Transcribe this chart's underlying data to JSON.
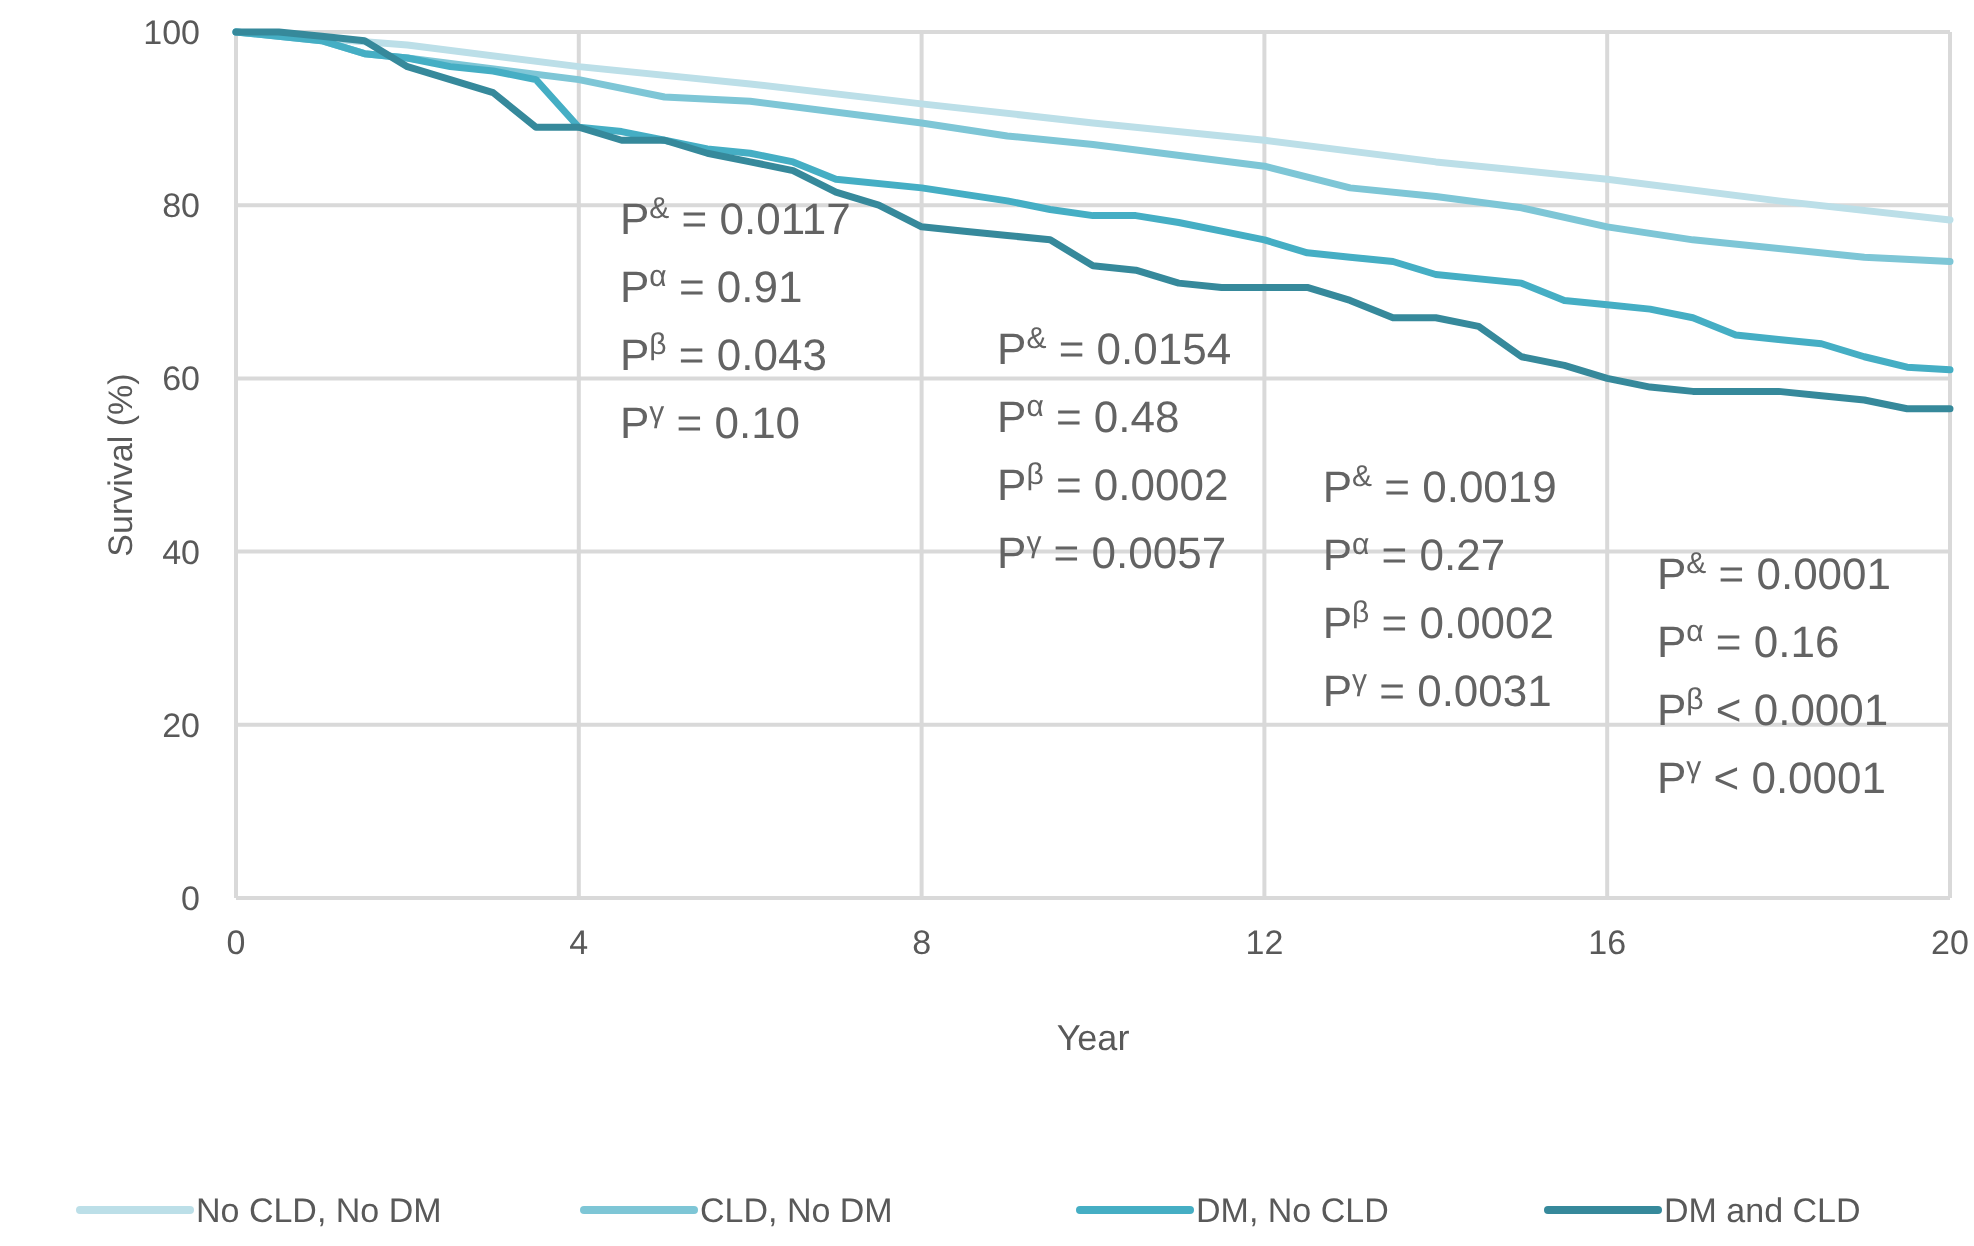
{
  "chart_data": {
    "type": "line",
    "xlabel": "Year",
    "ylabel": "Survival (%)",
    "xlim": [
      0,
      20
    ],
    "ylim": [
      0,
      100
    ],
    "xticks": [
      0,
      4,
      8,
      12,
      16,
      20
    ],
    "yticks": [
      0,
      20,
      40,
      60,
      80,
      100
    ],
    "grid": true,
    "legend": "bottom",
    "line_style": "solid",
    "series": [
      {
        "name": "No CLD, No DM",
        "color": "#bcdfe8",
        "x": [
          0,
          2,
          4,
          6,
          8,
          10,
          12,
          14,
          15,
          16,
          18,
          20
        ],
        "values": [
          100,
          98.5,
          96,
          94,
          91.7,
          89.5,
          87.5,
          85,
          84,
          83,
          80.5,
          78.3
        ]
      },
      {
        "name": "CLD, No DM",
        "color": "#7ec6d6",
        "x": [
          0,
          1,
          1.5,
          2,
          4,
          5,
          6,
          8,
          9,
          10,
          12,
          13,
          14,
          15,
          16,
          17,
          18,
          19,
          20
        ],
        "values": [
          100,
          99,
          97.5,
          97,
          94.5,
          92.5,
          92,
          89.5,
          88,
          87,
          84.5,
          82,
          81,
          79.7,
          77.5,
          76,
          75,
          74,
          73.5
        ]
      },
      {
        "name": "DM, No CLD",
        "color": "#45aec4",
        "x": [
          0,
          1,
          1.5,
          2,
          2.5,
          3,
          3.5,
          4,
          4.5,
          5,
          5.5,
          6,
          6.5,
          7,
          8,
          9,
          9.5,
          10,
          10.5,
          11,
          11.5,
          12,
          12.5,
          13,
          13.5,
          14,
          15,
          15.5,
          16,
          16.5,
          17,
          17.5,
          18,
          18.5,
          19,
          19.5,
          20
        ],
        "values": [
          100,
          99,
          97.5,
          97,
          96,
          95.5,
          94.5,
          89,
          88.5,
          87.5,
          86.5,
          86,
          85,
          83,
          82,
          80.5,
          79.5,
          78.8,
          78.8,
          78,
          77,
          76,
          74.5,
          74,
          73.5,
          72,
          71,
          69,
          68.5,
          68,
          67,
          65,
          64.5,
          64,
          62.5,
          61.3,
          61
        ]
      },
      {
        "name": "DM and CLD",
        "color": "#36899b",
        "x": [
          0,
          0.5,
          1,
          1.5,
          2,
          2.5,
          3,
          3.5,
          4,
          4.5,
          5,
          5.5,
          6,
          6.5,
          7,
          7.5,
          8,
          8.5,
          9,
          9.5,
          10,
          10.5,
          11,
          11.5,
          12,
          12.5,
          13,
          13.5,
          14,
          14.5,
          15,
          15.5,
          16,
          16.5,
          17,
          18,
          18.5,
          19,
          19.5,
          20
        ],
        "values": [
          100,
          100,
          99.5,
          99,
          96,
          94.5,
          93,
          89,
          89,
          87.5,
          87.5,
          86,
          85,
          84,
          81.5,
          80,
          77.5,
          77,
          76.5,
          76,
          73,
          72.5,
          71,
          70.5,
          70.5,
          70.5,
          69,
          67,
          67,
          66,
          62.5,
          61.5,
          60,
          59,
          58.5,
          58.5,
          58,
          57.5,
          56.5,
          56.5
        ]
      }
    ],
    "annotations": [
      "P$^{&}$ = 0.0117",
      "P$^{α}$ = 0.91",
      "P$^{β}$ = 0.043",
      "P$^{γ}$ = 0.10",
      "P$^{&}$ = 0.0154",
      "P$^{α}$ = 0.48",
      "P$^{β}$ = 0.0002",
      "P$^{γ}$ = 0.0057",
      "P$^{&}$ = 0.0019",
      "P$^{α}$ = 0.27",
      "P$^{β}$ = 0.0002",
      "P$^{γ}$ = 0.0031",
      "P$^{&}$ = 0.0001",
      "P$^{α}$ = 0.16",
      "P$^{β}$ < 0.0001",
      "P$^{γ}$ < 0.0001"
    ]
  }
}
